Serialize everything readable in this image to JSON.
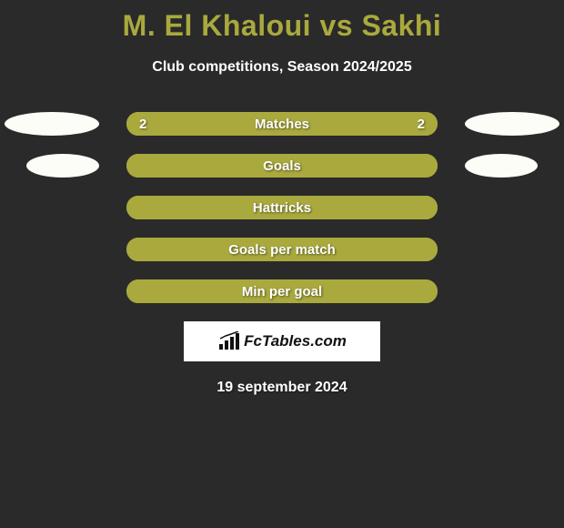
{
  "colors": {
    "bg": "#2a2a2a",
    "title": "#a9a93e",
    "bar_border": "#a9a93e",
    "bar_fill": "#a9a93e",
    "ellipse": "#fdfdf8",
    "text": "#ffffff",
    "brand_bg": "#ffffff",
    "brand_text": "#111111"
  },
  "title": "M. El Khaloui vs Sakhi",
  "subtitle": "Club competitions, Season 2024/2025",
  "rows": [
    {
      "label": "Matches",
      "left_visible": true,
      "right_visible": true,
      "left_val": "2",
      "right_val": "2",
      "fill_pct": 100
    },
    {
      "label": "Goals",
      "left_visible": true,
      "right_visible": true,
      "left_val": "",
      "right_val": "",
      "fill_pct": 100
    },
    {
      "label": "Hattricks",
      "left_visible": false,
      "right_visible": false,
      "left_val": "",
      "right_val": "",
      "fill_pct": 100
    },
    {
      "label": "Goals per match",
      "left_visible": false,
      "right_visible": false,
      "left_val": "",
      "right_val": "",
      "fill_pct": 100
    },
    {
      "label": "Min per goal",
      "left_visible": false,
      "right_visible": false,
      "left_val": "",
      "right_val": "",
      "fill_pct": 100
    }
  ],
  "brand": "FcTables.com",
  "date": "19 september 2024"
}
